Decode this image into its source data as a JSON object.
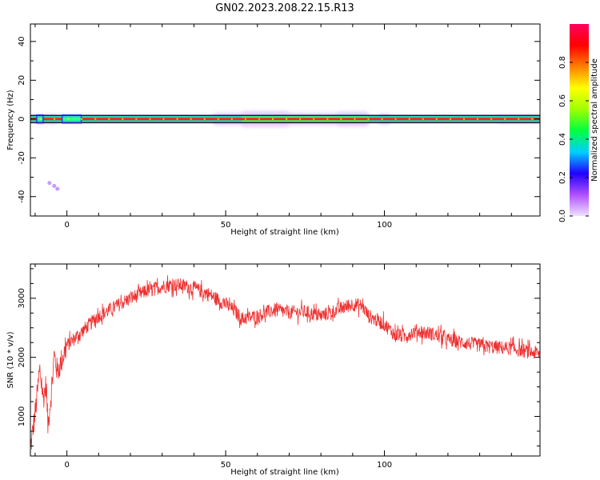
{
  "figure": {
    "title": "GN02.2023.208.22.15.R13"
  },
  "chart_data": [
    {
      "type": "heatmap",
      "title": "GN02.2023.208.22.15.R13",
      "xlabel": "Height of straight line (km)",
      "ylabel": "Frequency (Hz)",
      "xlim": [
        -11.5,
        149
      ],
      "ylim": [
        -50,
        49
      ],
      "x_ticks": [
        0,
        50,
        100
      ],
      "y_ticks": [
        -40,
        -20,
        0,
        20,
        40
      ],
      "colorbar": {
        "label": "Normalized spectral amplitude",
        "range": [
          0.0,
          1.0
        ],
        "ticks": [
          0.0,
          0.2,
          0.4,
          0.6,
          0.8
        ],
        "colormap": [
          "#f0e0ff",
          "#b050ff",
          "#2000ff",
          "#00d0ff",
          "#00ff40",
          "#a0ff00",
          "#ffff00",
          "#ff8000",
          "#ff0000",
          "#ff0060"
        ]
      },
      "signal": {
        "center_frequency_hz": 0,
        "band_halfwidth_hz": 2,
        "gap_segments": [
          [
            -9.5,
            -7.5
          ],
          [
            -1.5,
            4.5
          ]
        ],
        "scattered_points": [
          [
            -5.5,
            -33
          ],
          [
            -4,
            -34.5
          ],
          [
            -3,
            -36
          ]
        ]
      }
    },
    {
      "type": "line",
      "xlabel": "Height of straight line (km)",
      "ylabel": "SNR (10 * v/v)",
      "xlim": [
        -11.5,
        149
      ],
      "ylim": [
        330,
        3580
      ],
      "x_ticks": [
        0,
        50,
        100
      ],
      "y_ticks": [
        1000,
        2000,
        3000
      ],
      "series": [
        {
          "color": "#ee3030",
          "x": [
            -11.5,
            -10,
            -8.5,
            -7.5,
            -6.5,
            -6,
            -5,
            -4,
            -3,
            0,
            3,
            6,
            10,
            15,
            20,
            25,
            30,
            33,
            36,
            40,
            45,
            50,
            53,
            55,
            60,
            65,
            70,
            75,
            80,
            85,
            90,
            93,
            95,
            100,
            103,
            106,
            110,
            115,
            120,
            125,
            130,
            135,
            140,
            145,
            149
          ],
          "y": [
            450,
            1050,
            1800,
            1300,
            1550,
            850,
            1350,
            2050,
            1750,
            2200,
            2350,
            2500,
            2700,
            2850,
            3000,
            3120,
            3200,
            3230,
            3220,
            3170,
            3060,
            2900,
            2780,
            2650,
            2700,
            2800,
            2760,
            2770,
            2700,
            2800,
            2900,
            2870,
            2700,
            2560,
            2400,
            2350,
            2450,
            2400,
            2300,
            2250,
            2200,
            2170,
            2150,
            2100,
            2060
          ]
        }
      ]
    }
  ]
}
